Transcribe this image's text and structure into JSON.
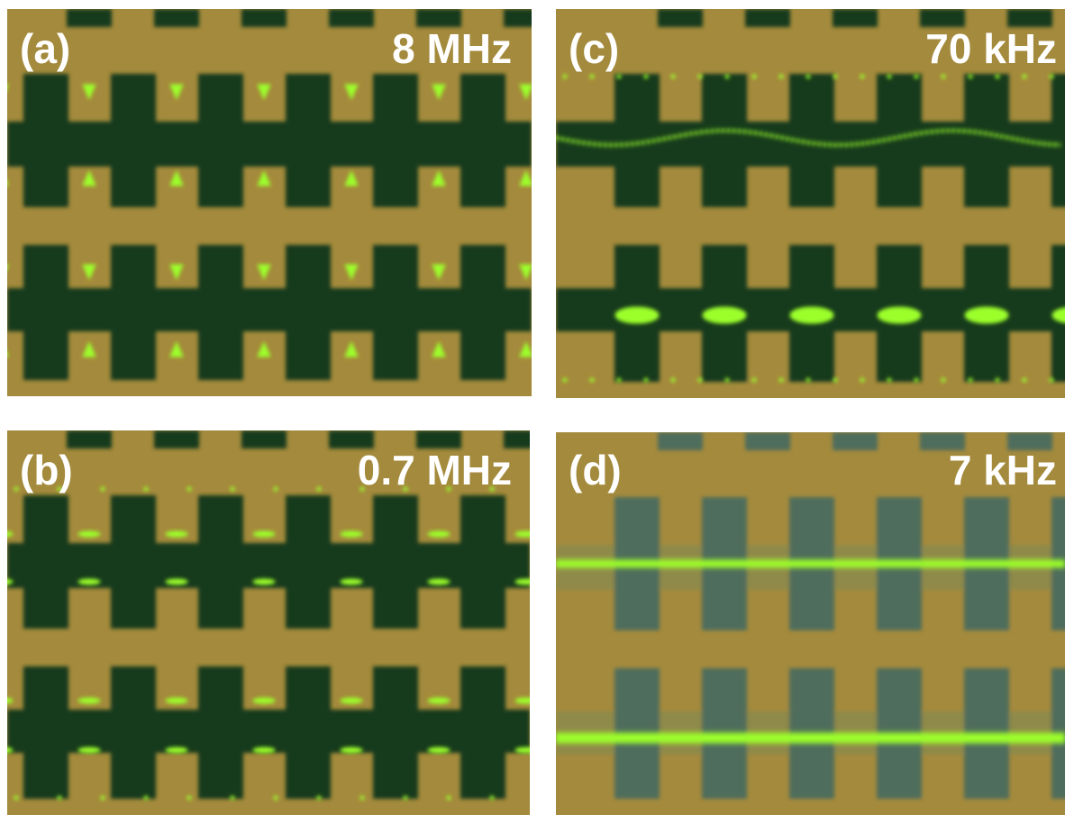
{
  "panels": [
    {
      "label": "(a)",
      "frequency": "8 MHz"
    },
    {
      "label": "(b)",
      "frequency": "0.7 MHz"
    },
    {
      "label": "(c)",
      "frequency": "70 kHz"
    },
    {
      "label": "(d)",
      "frequency": "7 kHz"
    }
  ]
}
